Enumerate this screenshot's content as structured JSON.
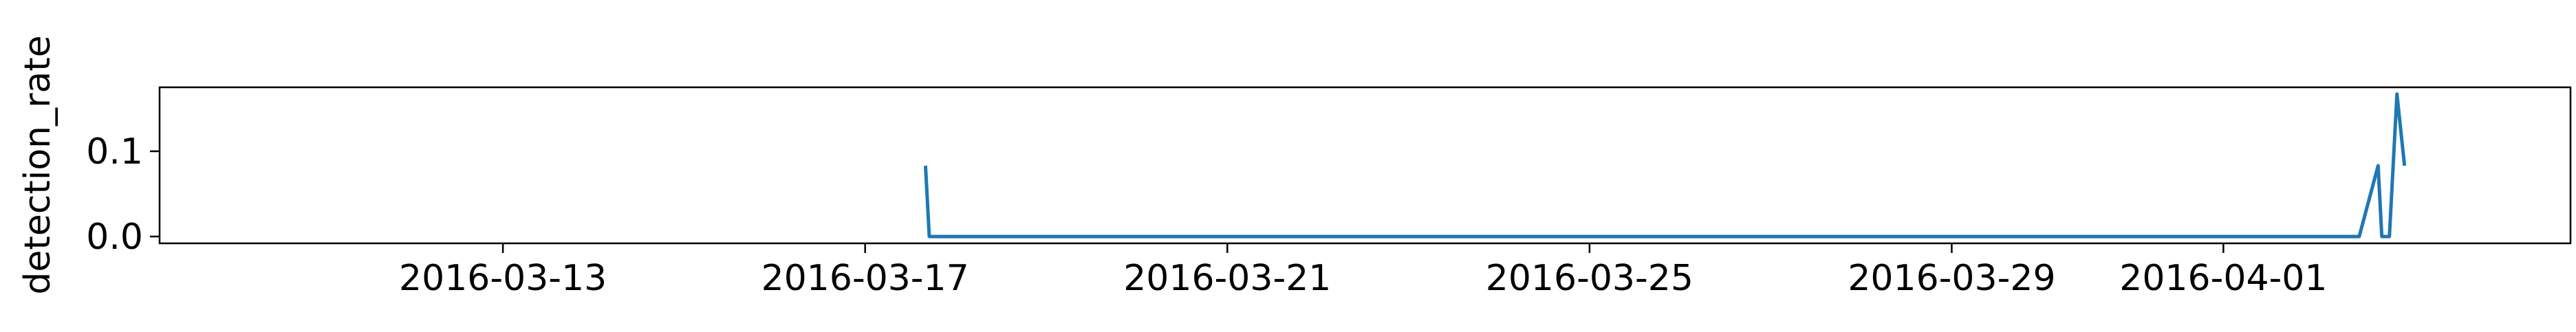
{
  "chart_data": {
    "type": "line",
    "title": "",
    "xlabel": "",
    "ylabel": "detection_rate",
    "x_tick_labels": [
      "2016-03-13",
      "2016-03-17",
      "2016-03-21",
      "2016-03-25",
      "2016-03-29",
      "2016-04-01"
    ],
    "x_tick_dates": [
      "2016-03-13",
      "2016-03-17",
      "2016-03-21",
      "2016-03-25",
      "2016-03-29",
      "2016-04-01"
    ],
    "y_tick_labels": [
      "0.0",
      "0.1"
    ],
    "y_tick_values": [
      0.0,
      0.1
    ],
    "xlim": [
      "2016-03-09T05:00",
      "2016-04-04T20:00"
    ],
    "ylim": [
      -0.008,
      0.175
    ],
    "grid": false,
    "series": [
      {
        "color": "#1f77b4",
        "points": [
          {
            "x": "2016-03-17T16:00",
            "y": 0.083
          },
          {
            "x": "2016-03-17T17:00",
            "y": 0.0
          },
          {
            "x": "2016-04-02T12:00",
            "y": 0.0
          },
          {
            "x": "2016-04-02T17:00",
            "y": 0.083
          },
          {
            "x": "2016-04-02T18:00",
            "y": 0.0
          },
          {
            "x": "2016-04-02T20:00",
            "y": 0.0
          },
          {
            "x": "2016-04-02T22:00",
            "y": 0.167
          },
          {
            "x": "2016-04-03T00:00",
            "y": 0.083
          }
        ]
      }
    ]
  }
}
